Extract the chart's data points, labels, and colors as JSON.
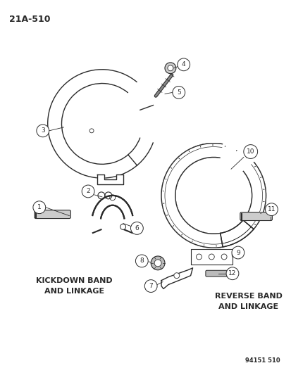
{
  "title": "21A-510",
  "bg_color": "#ffffff",
  "line_color": "#2a2a2a",
  "kickdown_label1": "KICKDOWN BAND",
  "kickdown_label2": "AND LINKAGE",
  "reverse_label1": "REVERSE BAND",
  "reverse_label2": "AND LINKAGE",
  "footer": "94151 510",
  "fig_width": 4.14,
  "fig_height": 5.33,
  "dpi": 100
}
